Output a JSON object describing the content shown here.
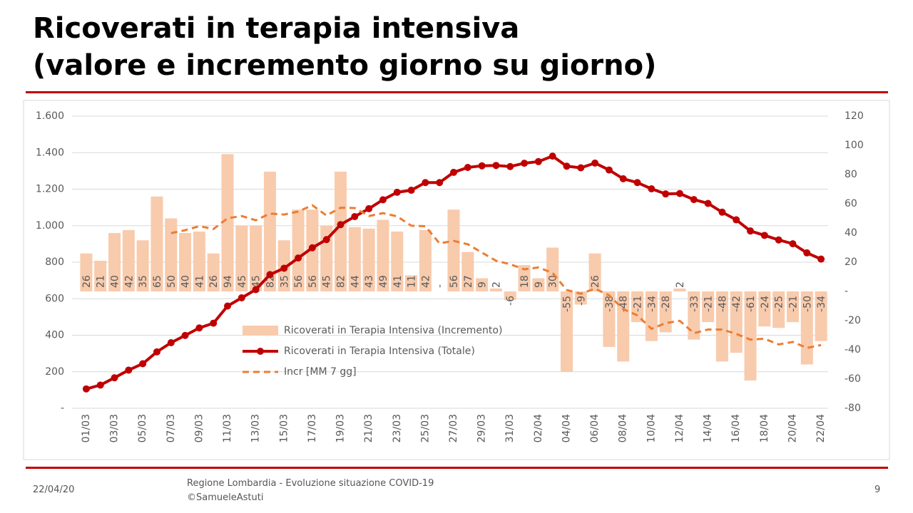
{
  "slide": {
    "title_lines": [
      "Ricoverati in terapia intensiva",
      "(valore e incremento giorno su giorno)"
    ],
    "footer": {
      "date": "22/04/20",
      "source_lines": [
        "Regione Lombardia - Evoluzione situazione COVID-19",
        "©SamueleAstuti"
      ],
      "page": "9"
    }
  },
  "chart_data": {
    "type": "combo",
    "categories": [
      "01/03",
      null,
      "03/03",
      null,
      "05/03",
      null,
      "07/03",
      null,
      "09/03",
      null,
      "11/03",
      null,
      "13/03",
      null,
      "15/03",
      null,
      "17/03",
      null,
      "19/03",
      null,
      "21/03",
      null,
      "23/03",
      null,
      "25/03",
      null,
      "27/03",
      null,
      "29/03",
      null,
      "31/03",
      null,
      "02/04",
      null,
      "04/04",
      null,
      "06/04",
      null,
      "08/04",
      null,
      "10/04",
      null,
      "12/04",
      null,
      "14/04",
      null,
      "16/04",
      null,
      "18/04",
      null,
      "20/04",
      null,
      "22/04"
    ],
    "series": [
      {
        "name": "Ricoverati in Terapia Intensiva (Incremento)",
        "type": "bar",
        "axis": "y2",
        "color": "#f8cbad",
        "values": [
          26,
          21,
          40,
          42,
          35,
          65,
          50,
          40,
          41,
          26,
          94,
          45,
          45,
          82,
          35,
          56,
          56,
          45,
          82,
          44,
          43,
          49,
          41,
          11,
          42,
          0,
          56,
          27,
          9,
          2,
          -6,
          18,
          9,
          30,
          -55,
          -9,
          26,
          -38,
          -48,
          -21,
          -34,
          -28,
          2,
          -33,
          -21,
          -48,
          -42,
          -61,
          -24,
          -25,
          -21,
          -50,
          -34
        ],
        "value_labels": [
          "26",
          "21",
          "40",
          "42",
          "35",
          "65",
          "50",
          "40",
          "41",
          "26",
          "94",
          "45",
          "45",
          "82",
          "35",
          "56",
          "56",
          "45",
          "82",
          "44",
          "43",
          "49",
          "41",
          "11",
          "42",
          "-",
          "56",
          "27",
          "9",
          "2",
          "-6",
          "18",
          "9",
          "30",
          "-55",
          "-9",
          "26",
          "-38",
          "-48",
          "-21",
          "-34",
          "-28",
          "2",
          "-33",
          "-21",
          "-48",
          "-42",
          "-61",
          "-24",
          "-25",
          "-21",
          "-50",
          "-34"
        ]
      },
      {
        "name": "Ricoverati in Terapia Intensiva (Totale)",
        "type": "line",
        "color": "#c00000",
        "markers": true,
        "values": [
          106,
          127,
          167,
          209,
          244,
          309,
          359,
          399,
          440,
          466,
          560,
          605,
          650,
          732,
          767,
          823,
          879,
          924,
          1006,
          1050,
          1093,
          1142,
          1183,
          1194,
          1236,
          1236,
          1292,
          1319,
          1328,
          1330,
          1324,
          1342,
          1351,
          1381,
          1326,
          1317,
          1343,
          1305,
          1257,
          1236,
          1202,
          1174,
          1176,
          1143,
          1122,
          1074,
          1032,
          971,
          947,
          922,
          901,
          851,
          817
        ]
      },
      {
        "name": "Incr [MM 7 gg]",
        "type": "line",
        "axis": "y2",
        "color": "#ed7d31",
        "dashed": true,
        "markers": false,
        "values": [
          null,
          null,
          null,
          null,
          null,
          null,
          39.9,
          41.9,
          44.7,
          42.7,
          50.1,
          51.6,
          48.7,
          53.3,
          52.6,
          54.7,
          59.0,
          52.0,
          57.3,
          57.1,
          51.6,
          53.6,
          51.4,
          45.0,
          44.6,
          32.9,
          34.6,
          32.3,
          26.6,
          21.0,
          18.6,
          15.1,
          16.4,
          12.7,
          1.0,
          -1.6,
          1.9,
          -2.7,
          -12.1,
          -16.4,
          -25.6,
          -21.7,
          -20.1,
          -28.6,
          -26.1,
          -26.1,
          -29.1,
          -33.0,
          -32.4,
          -36.3,
          -34.6,
          -38.7,
          -36.7
        ]
      }
    ],
    "ylim": [
      0,
      1600
    ],
    "yticks": [
      {
        "value": 0,
        "label": "-"
      },
      200,
      400,
      600,
      800,
      {
        "value": 1000,
        "label": "1.000"
      },
      {
        "value": 1200,
        "label": "1.200"
      },
      {
        "value": 1400,
        "label": "1.400"
      },
      {
        "value": 1600,
        "label": "1.600"
      }
    ],
    "y2lim": [
      -80,
      120
    ],
    "y2ticks": [
      -80,
      -60,
      -40,
      -20,
      {
        "value": 0,
        "label": "-"
      },
      20,
      40,
      60,
      80,
      100,
      120
    ],
    "negative_color": "#c00000",
    "label_color": "#404040",
    "grid": true,
    "legend": "center"
  }
}
